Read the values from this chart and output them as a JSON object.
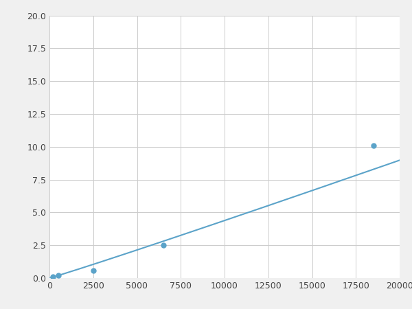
{
  "x": [
    200,
    500,
    2500,
    6500,
    18000,
    19000
  ],
  "y": [
    0.1,
    0.2,
    0.6,
    2.5,
    10.0,
    10.2
  ],
  "line_color": "#5ba3c9",
  "marker_color": "#5ba3c9",
  "marker_size": 5,
  "xlim": [
    0,
    20000
  ],
  "ylim": [
    0,
    20.0
  ],
  "xticks": [
    0,
    2500,
    5000,
    7500,
    10000,
    12500,
    15000,
    17500,
    20000
  ],
  "yticks": [
    0.0,
    2.5,
    5.0,
    7.5,
    10.0,
    12.5,
    15.0,
    17.5,
    20.0
  ],
  "grid_color": "#cccccc",
  "plot_bg": "#ffffff",
  "fig_bg": "#f0f0f0"
}
